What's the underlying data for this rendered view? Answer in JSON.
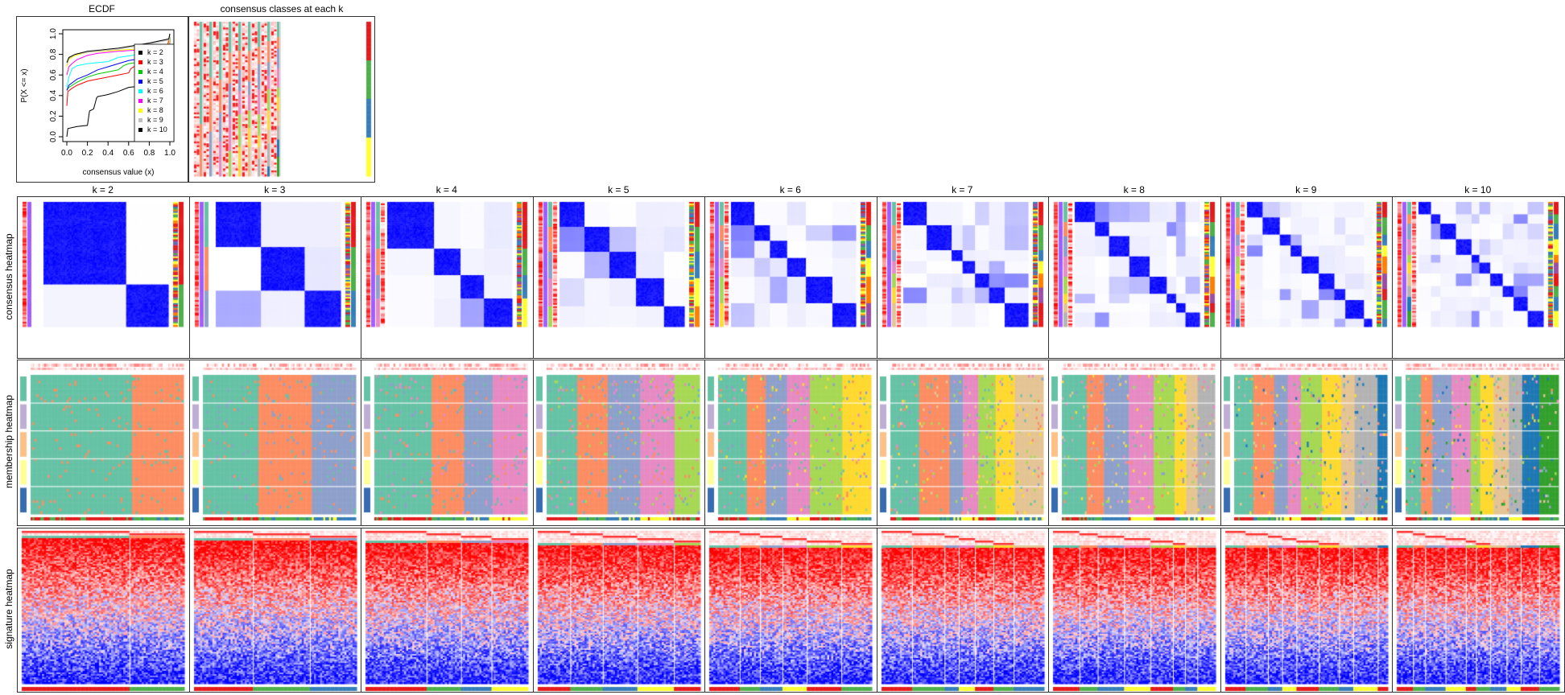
{
  "ecdf": {
    "title": "ECDF",
    "xlabel": "consensus value (x)",
    "ylabel": "P(X <= x)",
    "xticks": [
      "0.0",
      "0.2",
      "0.4",
      "0.6",
      "0.8",
      "1.0"
    ],
    "yticks": [
      "0.0",
      "0.2",
      "0.4",
      "0.6",
      "0.8",
      "1.0"
    ],
    "legend_placement": "right",
    "chart_data": {
      "type": "line",
      "xlim": [
        0,
        1
      ],
      "ylim": [
        0,
        1
      ],
      "series": [
        {
          "name": "k = 2",
          "color": "#000000",
          "points": [
            [
              0,
              0
            ],
            [
              0.01,
              0.08
            ],
            [
              0.1,
              0.1
            ],
            [
              0.2,
              0.11
            ],
            [
              0.22,
              0.25
            ],
            [
              0.26,
              0.27
            ],
            [
              0.29,
              0.38
            ],
            [
              0.3,
              0.39
            ],
            [
              0.4,
              0.41
            ],
            [
              0.5,
              0.44
            ],
            [
              0.6,
              0.48
            ],
            [
              0.7,
              0.49
            ],
            [
              0.85,
              0.5
            ],
            [
              0.99,
              0.51
            ],
            [
              1,
              1
            ]
          ]
        },
        {
          "name": "k = 3",
          "color": "#FF0000",
          "points": [
            [
              0,
              0.3
            ],
            [
              0.01,
              0.44
            ],
            [
              0.05,
              0.47
            ],
            [
              0.1,
              0.5
            ],
            [
              0.2,
              0.54
            ],
            [
              0.3,
              0.56
            ],
            [
              0.4,
              0.58
            ],
            [
              0.5,
              0.6
            ],
            [
              0.6,
              0.62
            ],
            [
              0.62,
              0.66
            ],
            [
              0.65,
              0.68
            ],
            [
              0.8,
              0.71
            ],
            [
              0.95,
              0.73
            ],
            [
              1,
              1
            ]
          ]
        },
        {
          "name": "k = 4",
          "color": "#00CC00",
          "points": [
            [
              0,
              0.45
            ],
            [
              0.02,
              0.48
            ],
            [
              0.1,
              0.53
            ],
            [
              0.2,
              0.58
            ],
            [
              0.3,
              0.61
            ],
            [
              0.4,
              0.63
            ],
            [
              0.5,
              0.65
            ],
            [
              0.55,
              0.69
            ],
            [
              0.6,
              0.71
            ],
            [
              0.8,
              0.74
            ],
            [
              0.99,
              0.76
            ],
            [
              1,
              1
            ]
          ]
        },
        {
          "name": "k = 5",
          "color": "#0000FF",
          "points": [
            [
              0,
              0.45
            ],
            [
              0.02,
              0.5
            ],
            [
              0.1,
              0.56
            ],
            [
              0.2,
              0.6
            ],
            [
              0.3,
              0.65
            ],
            [
              0.4,
              0.68
            ],
            [
              0.5,
              0.71
            ],
            [
              0.6,
              0.74
            ],
            [
              0.8,
              0.77
            ],
            [
              0.99,
              0.79
            ],
            [
              1,
              1
            ]
          ]
        },
        {
          "name": "k = 6",
          "color": "#00FFFF",
          "points": [
            [
              0,
              0.48
            ],
            [
              0.02,
              0.58
            ],
            [
              0.05,
              0.66
            ],
            [
              0.1,
              0.69
            ],
            [
              0.2,
              0.71
            ],
            [
              0.4,
              0.73
            ],
            [
              0.5,
              0.77
            ],
            [
              0.7,
              0.8
            ],
            [
              0.99,
              0.82
            ],
            [
              1,
              1
            ]
          ]
        },
        {
          "name": "k = 7",
          "color": "#FF00FF",
          "points": [
            [
              0,
              0.6
            ],
            [
              0.02,
              0.68
            ],
            [
              0.05,
              0.71
            ],
            [
              0.1,
              0.75
            ],
            [
              0.2,
              0.79
            ],
            [
              0.3,
              0.81
            ],
            [
              0.5,
              0.83
            ],
            [
              0.8,
              0.85
            ],
            [
              0.99,
              0.87
            ],
            [
              1,
              1
            ]
          ]
        },
        {
          "name": "k = 8",
          "color": "#FFFF00",
          "points": [
            [
              0,
              0.68
            ],
            [
              0.02,
              0.75
            ],
            [
              0.08,
              0.79
            ],
            [
              0.2,
              0.82
            ],
            [
              0.5,
              0.84
            ],
            [
              0.8,
              0.86
            ],
            [
              0.99,
              0.88
            ],
            [
              1,
              1
            ]
          ]
        },
        {
          "name": "k = 9",
          "color": "#BEBEBE",
          "points": [
            [
              0,
              0.7
            ],
            [
              0.02,
              0.76
            ],
            [
              0.08,
              0.8
            ],
            [
              0.2,
              0.82
            ],
            [
              0.5,
              0.85
            ],
            [
              0.8,
              0.9
            ],
            [
              0.99,
              0.94
            ],
            [
              1,
              1
            ]
          ]
        },
        {
          "name": "k = 10",
          "color": "#000000",
          "points": [
            [
              0,
              0.72
            ],
            [
              0.02,
              0.77
            ],
            [
              0.08,
              0.8
            ],
            [
              0.2,
              0.83
            ],
            [
              0.5,
              0.86
            ],
            [
              0.8,
              0.91
            ],
            [
              0.99,
              0.95
            ],
            [
              1,
              1
            ]
          ]
        }
      ]
    }
  },
  "classes_panel": {
    "title": "consensus classes at each k"
  },
  "columns": [
    {
      "label": "k = 2",
      "k": 2
    },
    {
      "label": "k = 3",
      "k": 3
    },
    {
      "label": "k = 4",
      "k": 4
    },
    {
      "label": "k = 5",
      "k": 5
    },
    {
      "label": "k = 6",
      "k": 6
    },
    {
      "label": "k = 7",
      "k": 7
    },
    {
      "label": "k = 8",
      "k": 8
    },
    {
      "label": "k = 9",
      "k": 9
    },
    {
      "label": "k = 10",
      "k": 10
    }
  ],
  "rows": [
    {
      "label": "consensus heatmap"
    },
    {
      "label": "membership heatmap"
    },
    {
      "label": "signature heatmap"
    }
  ],
  "colors": {
    "consensus_high": "#0000FF",
    "consensus_low": "#FFFFFF",
    "signature_high": "#FF0000",
    "signature_mid": "#FFFFFF",
    "signature_low": "#0000FF",
    "class_palette": [
      "#66C2A5",
      "#FC8D62",
      "#8DA0CB",
      "#E78AC3",
      "#A6D854",
      "#FFD92F",
      "#E5C494",
      "#B3B3B3",
      "#1F78B4",
      "#33A02C"
    ],
    "annotation": [
      "#E41A1C",
      "#4DAF4A",
      "#377EB8",
      "#FFFF33",
      "#FF7F00",
      "#984EA3"
    ]
  }
}
